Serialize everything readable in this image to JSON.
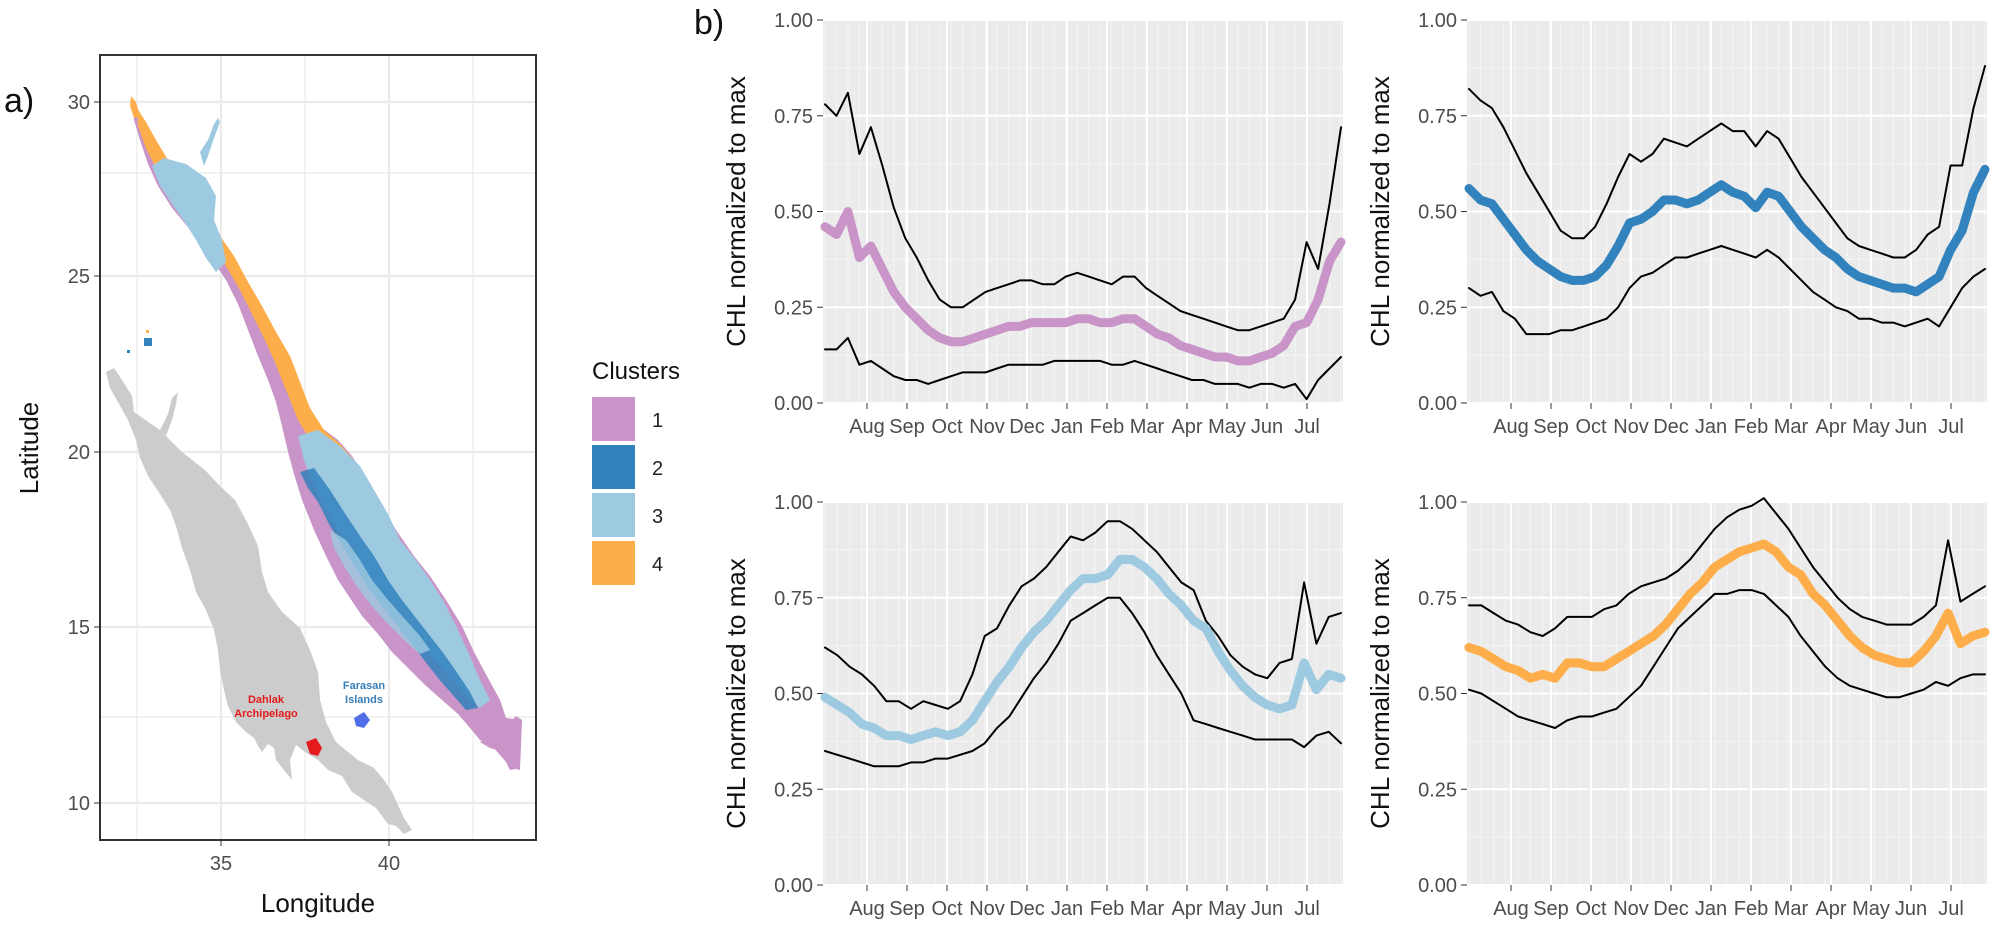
{
  "panel_a": {
    "label": "a)",
    "xlabel": "Longitude",
    "ylabel": "Latitude",
    "x_ticks": [
      "35",
      "40"
    ],
    "y_ticks": [
      "10",
      "15",
      "20",
      "25",
      "30"
    ],
    "legend": {
      "title": "Clusters",
      "items": [
        {
          "label": "1",
          "color": "#c994c7"
        },
        {
          "label": "2",
          "color": "#3182bd"
        },
        {
          "label": "3",
          "color": "#9ecae1"
        },
        {
          "label": "4",
          "color": "#fdae4b"
        }
      ]
    },
    "annotations": [
      {
        "text": "Dahlak",
        "color": "#e41a1c"
      },
      {
        "text": "Archipelago",
        "color": "#e41a1c"
      },
      {
        "text": "Farasan",
        "color": "#377eb8"
      },
      {
        "text": "Islands",
        "color": "#377eb8"
      }
    ],
    "land_color": "#cccccc"
  },
  "panel_b_label": "b)",
  "chart_data": [
    {
      "type": "line",
      "cluster": "1",
      "color": "#c994c7",
      "ylabel": "CHL normalized to max",
      "ylim": [
        0,
        1
      ],
      "yticks": [
        "0.00",
        "0.25",
        "0.50",
        "0.75",
        "1.00"
      ],
      "xticks": [
        "Aug",
        "Sep",
        "Oct",
        "Nov",
        "Dec",
        "Jan",
        "Feb",
        "Mar",
        "Apr",
        "May",
        "Jun",
        "Jul"
      ],
      "series": [
        {
          "name": "upper",
          "values": [
            0.78,
            0.75,
            0.81,
            0.65,
            0.72,
            0.62,
            0.51,
            0.43,
            0.38,
            0.32,
            0.27,
            0.25,
            0.25,
            0.27,
            0.29,
            0.3,
            0.31,
            0.32,
            0.32,
            0.31,
            0.31,
            0.33,
            0.34,
            0.33,
            0.32,
            0.31,
            0.33,
            0.33,
            0.3,
            0.28,
            0.26,
            0.24,
            0.23,
            0.22,
            0.21,
            0.2,
            0.19,
            0.19,
            0.2,
            0.21,
            0.22,
            0.27,
            0.42,
            0.35,
            0.52,
            0.72
          ]
        },
        {
          "name": "mean",
          "values": [
            0.46,
            0.44,
            0.5,
            0.38,
            0.41,
            0.35,
            0.29,
            0.25,
            0.22,
            0.19,
            0.17,
            0.16,
            0.16,
            0.17,
            0.18,
            0.19,
            0.2,
            0.2,
            0.21,
            0.21,
            0.21,
            0.21,
            0.22,
            0.22,
            0.21,
            0.21,
            0.22,
            0.22,
            0.2,
            0.18,
            0.17,
            0.15,
            0.14,
            0.13,
            0.12,
            0.12,
            0.11,
            0.11,
            0.12,
            0.13,
            0.15,
            0.2,
            0.21,
            0.27,
            0.37,
            0.42
          ]
        },
        {
          "name": "lower",
          "values": [
            0.14,
            0.14,
            0.17,
            0.1,
            0.11,
            0.09,
            0.07,
            0.06,
            0.06,
            0.05,
            0.06,
            0.07,
            0.08,
            0.08,
            0.08,
            0.09,
            0.1,
            0.1,
            0.1,
            0.1,
            0.11,
            0.11,
            0.11,
            0.11,
            0.11,
            0.1,
            0.1,
            0.11,
            0.1,
            0.09,
            0.08,
            0.07,
            0.06,
            0.06,
            0.05,
            0.05,
            0.05,
            0.04,
            0.05,
            0.05,
            0.04,
            0.05,
            0.01,
            0.06,
            0.09,
            0.12
          ]
        }
      ]
    },
    {
      "type": "line",
      "cluster": "2",
      "color": "#3182bd",
      "ylabel": "CHL normalized to max",
      "ylim": [
        0,
        1
      ],
      "yticks": [
        "0.00",
        "0.25",
        "0.50",
        "0.75",
        "1.00"
      ],
      "xticks": [
        "Aug",
        "Sep",
        "Oct",
        "Nov",
        "Dec",
        "Jan",
        "Feb",
        "Mar",
        "Apr",
        "May",
        "Jun",
        "Jul"
      ],
      "series": [
        {
          "name": "upper",
          "values": [
            0.82,
            0.79,
            0.77,
            0.72,
            0.66,
            0.6,
            0.55,
            0.5,
            0.45,
            0.43,
            0.43,
            0.46,
            0.52,
            0.59,
            0.65,
            0.63,
            0.65,
            0.69,
            0.68,
            0.67,
            0.69,
            0.71,
            0.73,
            0.71,
            0.71,
            0.67,
            0.71,
            0.69,
            0.64,
            0.59,
            0.55,
            0.51,
            0.47,
            0.43,
            0.41,
            0.4,
            0.39,
            0.38,
            0.38,
            0.4,
            0.44,
            0.46,
            0.62,
            0.62,
            0.77,
            0.88
          ]
        },
        {
          "name": "mean",
          "values": [
            0.56,
            0.53,
            0.52,
            0.48,
            0.44,
            0.4,
            0.37,
            0.35,
            0.33,
            0.32,
            0.32,
            0.33,
            0.36,
            0.41,
            0.47,
            0.48,
            0.5,
            0.53,
            0.53,
            0.52,
            0.53,
            0.55,
            0.57,
            0.55,
            0.54,
            0.51,
            0.55,
            0.54,
            0.5,
            0.46,
            0.43,
            0.4,
            0.38,
            0.35,
            0.33,
            0.32,
            0.31,
            0.3,
            0.3,
            0.29,
            0.31,
            0.33,
            0.4,
            0.45,
            0.55,
            0.61
          ]
        },
        {
          "name": "lower",
          "values": [
            0.3,
            0.28,
            0.29,
            0.24,
            0.22,
            0.18,
            0.18,
            0.18,
            0.19,
            0.19,
            0.2,
            0.21,
            0.22,
            0.25,
            0.3,
            0.33,
            0.34,
            0.36,
            0.38,
            0.38,
            0.39,
            0.4,
            0.41,
            0.4,
            0.39,
            0.38,
            0.4,
            0.38,
            0.35,
            0.32,
            0.29,
            0.27,
            0.25,
            0.24,
            0.22,
            0.22,
            0.21,
            0.21,
            0.2,
            0.21,
            0.22,
            0.2,
            0.25,
            0.3,
            0.33,
            0.35
          ]
        }
      ]
    },
    {
      "type": "line",
      "cluster": "3",
      "color": "#9ecae1",
      "ylabel": "CHL normalized to max",
      "ylim": [
        0,
        1
      ],
      "yticks": [
        "0.00",
        "0.25",
        "0.50",
        "0.75",
        "1.00"
      ],
      "xticks": [
        "Aug",
        "Sep",
        "Oct",
        "Nov",
        "Dec",
        "Jan",
        "Feb",
        "Mar",
        "Apr",
        "May",
        "Jun",
        "Jul"
      ],
      "series": [
        {
          "name": "upper",
          "values": [
            0.62,
            0.6,
            0.57,
            0.55,
            0.52,
            0.48,
            0.48,
            0.46,
            0.48,
            0.47,
            0.46,
            0.48,
            0.55,
            0.65,
            0.67,
            0.73,
            0.78,
            0.8,
            0.83,
            0.87,
            0.91,
            0.9,
            0.92,
            0.95,
            0.95,
            0.93,
            0.9,
            0.87,
            0.83,
            0.79,
            0.77,
            0.69,
            0.65,
            0.6,
            0.57,
            0.55,
            0.54,
            0.58,
            0.59,
            0.79,
            0.63,
            0.7,
            0.71
          ]
        },
        {
          "name": "mean",
          "values": [
            0.49,
            0.47,
            0.45,
            0.42,
            0.41,
            0.39,
            0.39,
            0.38,
            0.39,
            0.4,
            0.39,
            0.4,
            0.43,
            0.48,
            0.53,
            0.57,
            0.62,
            0.66,
            0.69,
            0.73,
            0.77,
            0.8,
            0.8,
            0.81,
            0.85,
            0.85,
            0.83,
            0.8,
            0.76,
            0.73,
            0.69,
            0.67,
            0.61,
            0.56,
            0.52,
            0.49,
            0.47,
            0.46,
            0.47,
            0.58,
            0.51,
            0.55,
            0.54
          ]
        },
        {
          "name": "lower",
          "values": [
            0.35,
            0.34,
            0.33,
            0.32,
            0.31,
            0.31,
            0.31,
            0.32,
            0.32,
            0.33,
            0.33,
            0.34,
            0.35,
            0.37,
            0.41,
            0.44,
            0.49,
            0.54,
            0.58,
            0.63,
            0.69,
            0.71,
            0.73,
            0.75,
            0.75,
            0.71,
            0.66,
            0.6,
            0.55,
            0.5,
            0.43,
            0.42,
            0.41,
            0.4,
            0.39,
            0.38,
            0.38,
            0.38,
            0.38,
            0.36,
            0.39,
            0.4,
            0.37
          ]
        }
      ]
    },
    {
      "type": "line",
      "cluster": "4",
      "color": "#fdae4b",
      "ylabel": "CHL normalized to max",
      "ylim": [
        0,
        1
      ],
      "yticks": [
        "0.00",
        "0.25",
        "0.50",
        "0.75",
        "1.00"
      ],
      "xticks": [
        "Aug",
        "Sep",
        "Oct",
        "Nov",
        "Dec",
        "Jan",
        "Feb",
        "Mar",
        "Apr",
        "May",
        "Jun",
        "Jul"
      ],
      "series": [
        {
          "name": "upper",
          "values": [
            0.73,
            0.73,
            0.71,
            0.69,
            0.68,
            0.66,
            0.65,
            0.67,
            0.7,
            0.7,
            0.7,
            0.72,
            0.73,
            0.76,
            0.78,
            0.79,
            0.8,
            0.82,
            0.85,
            0.89,
            0.93,
            0.96,
            0.98,
            0.99,
            1.01,
            0.97,
            0.93,
            0.88,
            0.83,
            0.79,
            0.75,
            0.72,
            0.7,
            0.69,
            0.68,
            0.68,
            0.68,
            0.7,
            0.73,
            0.9,
            0.74,
            0.76,
            0.78
          ]
        },
        {
          "name": "mean",
          "values": [
            0.62,
            0.61,
            0.59,
            0.57,
            0.56,
            0.54,
            0.55,
            0.54,
            0.58,
            0.58,
            0.57,
            0.57,
            0.59,
            0.61,
            0.63,
            0.65,
            0.68,
            0.72,
            0.76,
            0.79,
            0.83,
            0.85,
            0.87,
            0.88,
            0.89,
            0.87,
            0.83,
            0.81,
            0.76,
            0.73,
            0.69,
            0.65,
            0.62,
            0.6,
            0.59,
            0.58,
            0.58,
            0.61,
            0.65,
            0.71,
            0.63,
            0.65,
            0.66
          ]
        },
        {
          "name": "lower",
          "values": [
            0.51,
            0.5,
            0.48,
            0.46,
            0.44,
            0.43,
            0.42,
            0.41,
            0.43,
            0.44,
            0.44,
            0.45,
            0.46,
            0.49,
            0.52,
            0.57,
            0.62,
            0.67,
            0.7,
            0.73,
            0.76,
            0.76,
            0.77,
            0.77,
            0.76,
            0.73,
            0.7,
            0.65,
            0.61,
            0.57,
            0.54,
            0.52,
            0.51,
            0.5,
            0.49,
            0.49,
            0.5,
            0.51,
            0.53,
            0.52,
            0.54,
            0.55,
            0.55
          ]
        }
      ]
    }
  ]
}
